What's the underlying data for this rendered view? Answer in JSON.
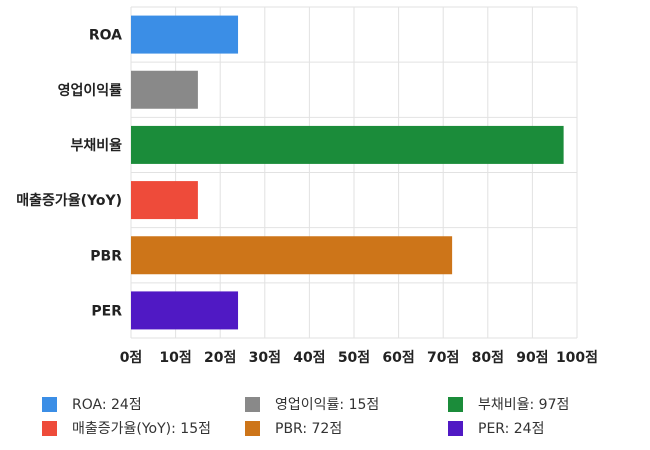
{
  "chart_data": {
    "type": "bar",
    "orientation": "horizontal",
    "categories": [
      "ROA",
      "영업이익률",
      "부채비율",
      "매출증가율(YoY)",
      "PBR",
      "PER"
    ],
    "values": [
      24,
      15,
      97,
      15,
      72,
      24
    ],
    "colors": [
      "#3b8ee6",
      "#898989",
      "#1b8c3a",
      "#ee4b3a",
      "#cd7519",
      "#5019c4"
    ],
    "xlim": [
      0,
      100
    ],
    "x_ticks": [
      0,
      10,
      20,
      30,
      40,
      50,
      60,
      70,
      80,
      90,
      100
    ],
    "unit_suffix": "점",
    "grid": true,
    "legend_position": "bottom",
    "legend": [
      {
        "label": "ROA: 24점",
        "color": "#3b8ee6"
      },
      {
        "label": "영업이익률: 15점",
        "color": "#898989"
      },
      {
        "label": "부채비율: 97점",
        "color": "#1b8c3a"
      },
      {
        "label": "매출증가율(YoY): 15점",
        "color": "#ee4b3a"
      },
      {
        "label": "PBR: 72점",
        "color": "#cd7519"
      },
      {
        "label": "PER: 24점",
        "color": "#5019c4"
      }
    ]
  }
}
